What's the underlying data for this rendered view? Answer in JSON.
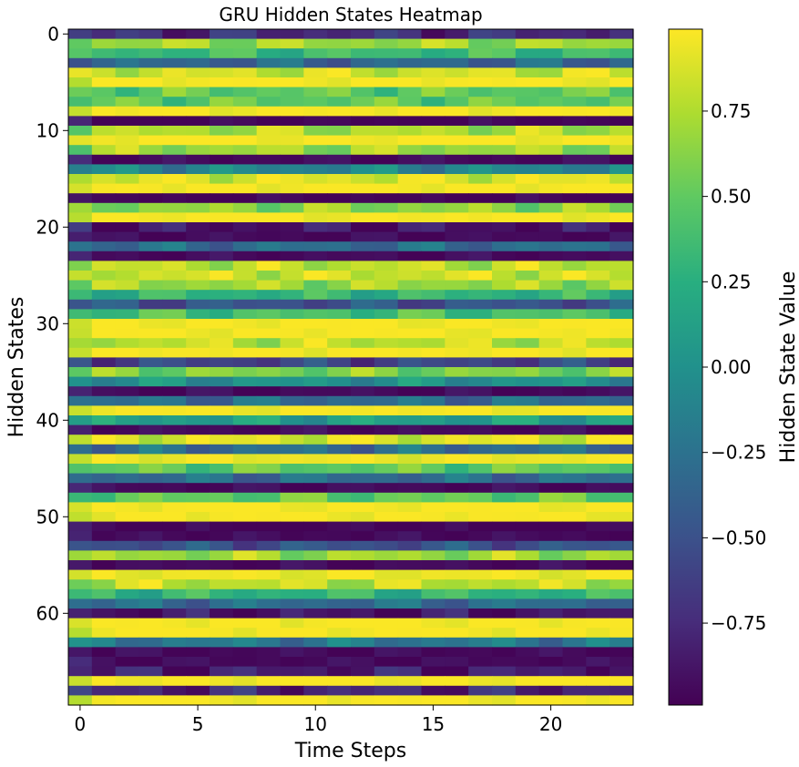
{
  "chart_data": {
    "type": "heatmap",
    "title": "GRU Hidden States Heatmap",
    "xlabel": "Time Steps",
    "ylabel": "Hidden States",
    "colorbar_label": "Hidden State Value",
    "n_rows": 70,
    "n_cols": 24,
    "x_ticks": [
      0,
      5,
      10,
      15,
      20
    ],
    "x_tick_labels": [
      "0",
      "5",
      "10",
      "15",
      "20"
    ],
    "y_ticks": [
      0,
      10,
      20,
      30,
      40,
      50,
      60
    ],
    "y_tick_labels": [
      "0",
      "10",
      "20",
      "30",
      "40",
      "50",
      "60"
    ],
    "colorbar_ticks": [
      0.75,
      0.5,
      0.25,
      0.0,
      -0.25,
      -0.5,
      -0.75
    ],
    "colorbar_tick_labels": [
      "0.75",
      "0.50",
      "0.25",
      "0.00",
      "−0.25",
      "−0.50",
      "−0.75"
    ],
    "vmin": -1.0,
    "vmax": 1.0,
    "colormap": "viridis",
    "row_base_values": [
      -0.75,
      0.7,
      0.35,
      -0.35,
      0.85,
      0.99,
      0.5,
      0.5,
      0.99,
      -0.99,
      0.75,
      0.99,
      0.7,
      -0.95,
      -0.1,
      0.9,
      0.99,
      -0.99,
      0.65,
      0.99,
      -0.9,
      -0.95,
      -0.3,
      -0.95,
      0.8,
      0.85,
      0.7,
      0.3,
      -0.5,
      0.4,
      0.99,
      0.99,
      0.8,
      0.99,
      -0.6,
      0.6,
      0.0,
      -0.95,
      -0.3,
      0.99,
      0.1,
      -0.95,
      0.9,
      -0.3,
      0.95,
      0.5,
      -0.3,
      -0.95,
      0.5,
      0.99,
      0.99,
      -0.99,
      -0.95,
      -0.5,
      0.7,
      -0.95,
      0.95,
      0.8,
      0.3,
      -0.3,
      -0.9,
      0.99,
      0.99,
      -0.2,
      -0.95,
      -0.95,
      -0.85,
      0.99,
      -0.8,
      0.99
    ]
  }
}
